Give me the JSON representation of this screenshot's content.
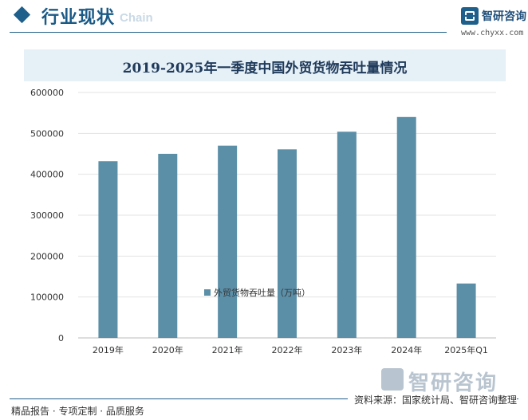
{
  "header": {
    "section_title": "行业现状",
    "ghost_text": "Chain",
    "brand_name": "智研咨询",
    "brand_url": "www.chyxx.com",
    "accent_color": "#1f5f8b"
  },
  "chart_data": {
    "type": "bar",
    "title": "2019-2025年一季度中国外贸货物吞吐量情况",
    "categories": [
      "2019年",
      "2020年",
      "2021年",
      "2022年",
      "2023年",
      "2024年",
      "2025年Q1"
    ],
    "series": [
      {
        "name": "外贸货物吞吐量（万吨）",
        "values": [
          432000,
          450000,
          470000,
          461000,
          504000,
          540000,
          133000
        ],
        "color": "#5b8fa8"
      }
    ],
    "yticks": [
      "0",
      "100000",
      "200000",
      "300000",
      "400000",
      "500000",
      "600000"
    ],
    "ylim": [
      0,
      600000
    ],
    "grid": true,
    "legend_position": "bottom"
  },
  "watermark": {
    "text": "智研咨询"
  },
  "footer": {
    "left": "精品报告 · 专项定制 · 品质服务",
    "right": "资料来源：国家统计局、智研咨询整理"
  }
}
